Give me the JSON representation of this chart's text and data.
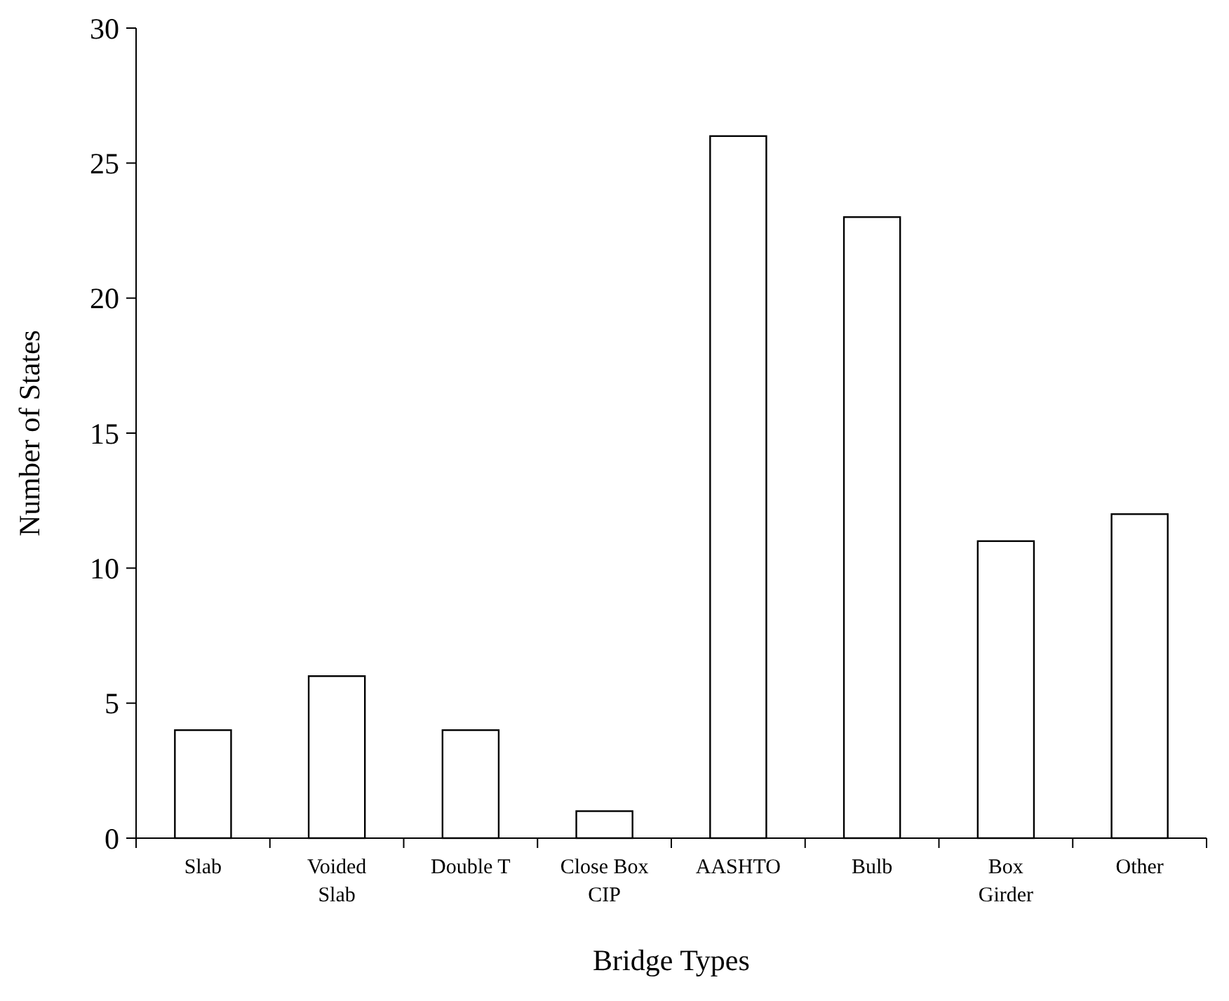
{
  "chart_data": {
    "type": "bar",
    "xlabel": "Bridge Types",
    "ylabel": "Number of States",
    "categories": [
      "Slab",
      "Voided Slab",
      "Double T",
      "Close Box CIP",
      "AASHTO",
      "Bulb",
      "Box Girder",
      "Other"
    ],
    "values": [
      4,
      6,
      4,
      1,
      26,
      23,
      11,
      12
    ],
    "color": "#ffffff",
    "ylim": [
      0,
      30
    ],
    "yticks": [
      0,
      5,
      10,
      15,
      20,
      25,
      30
    ],
    "grid": false
  }
}
